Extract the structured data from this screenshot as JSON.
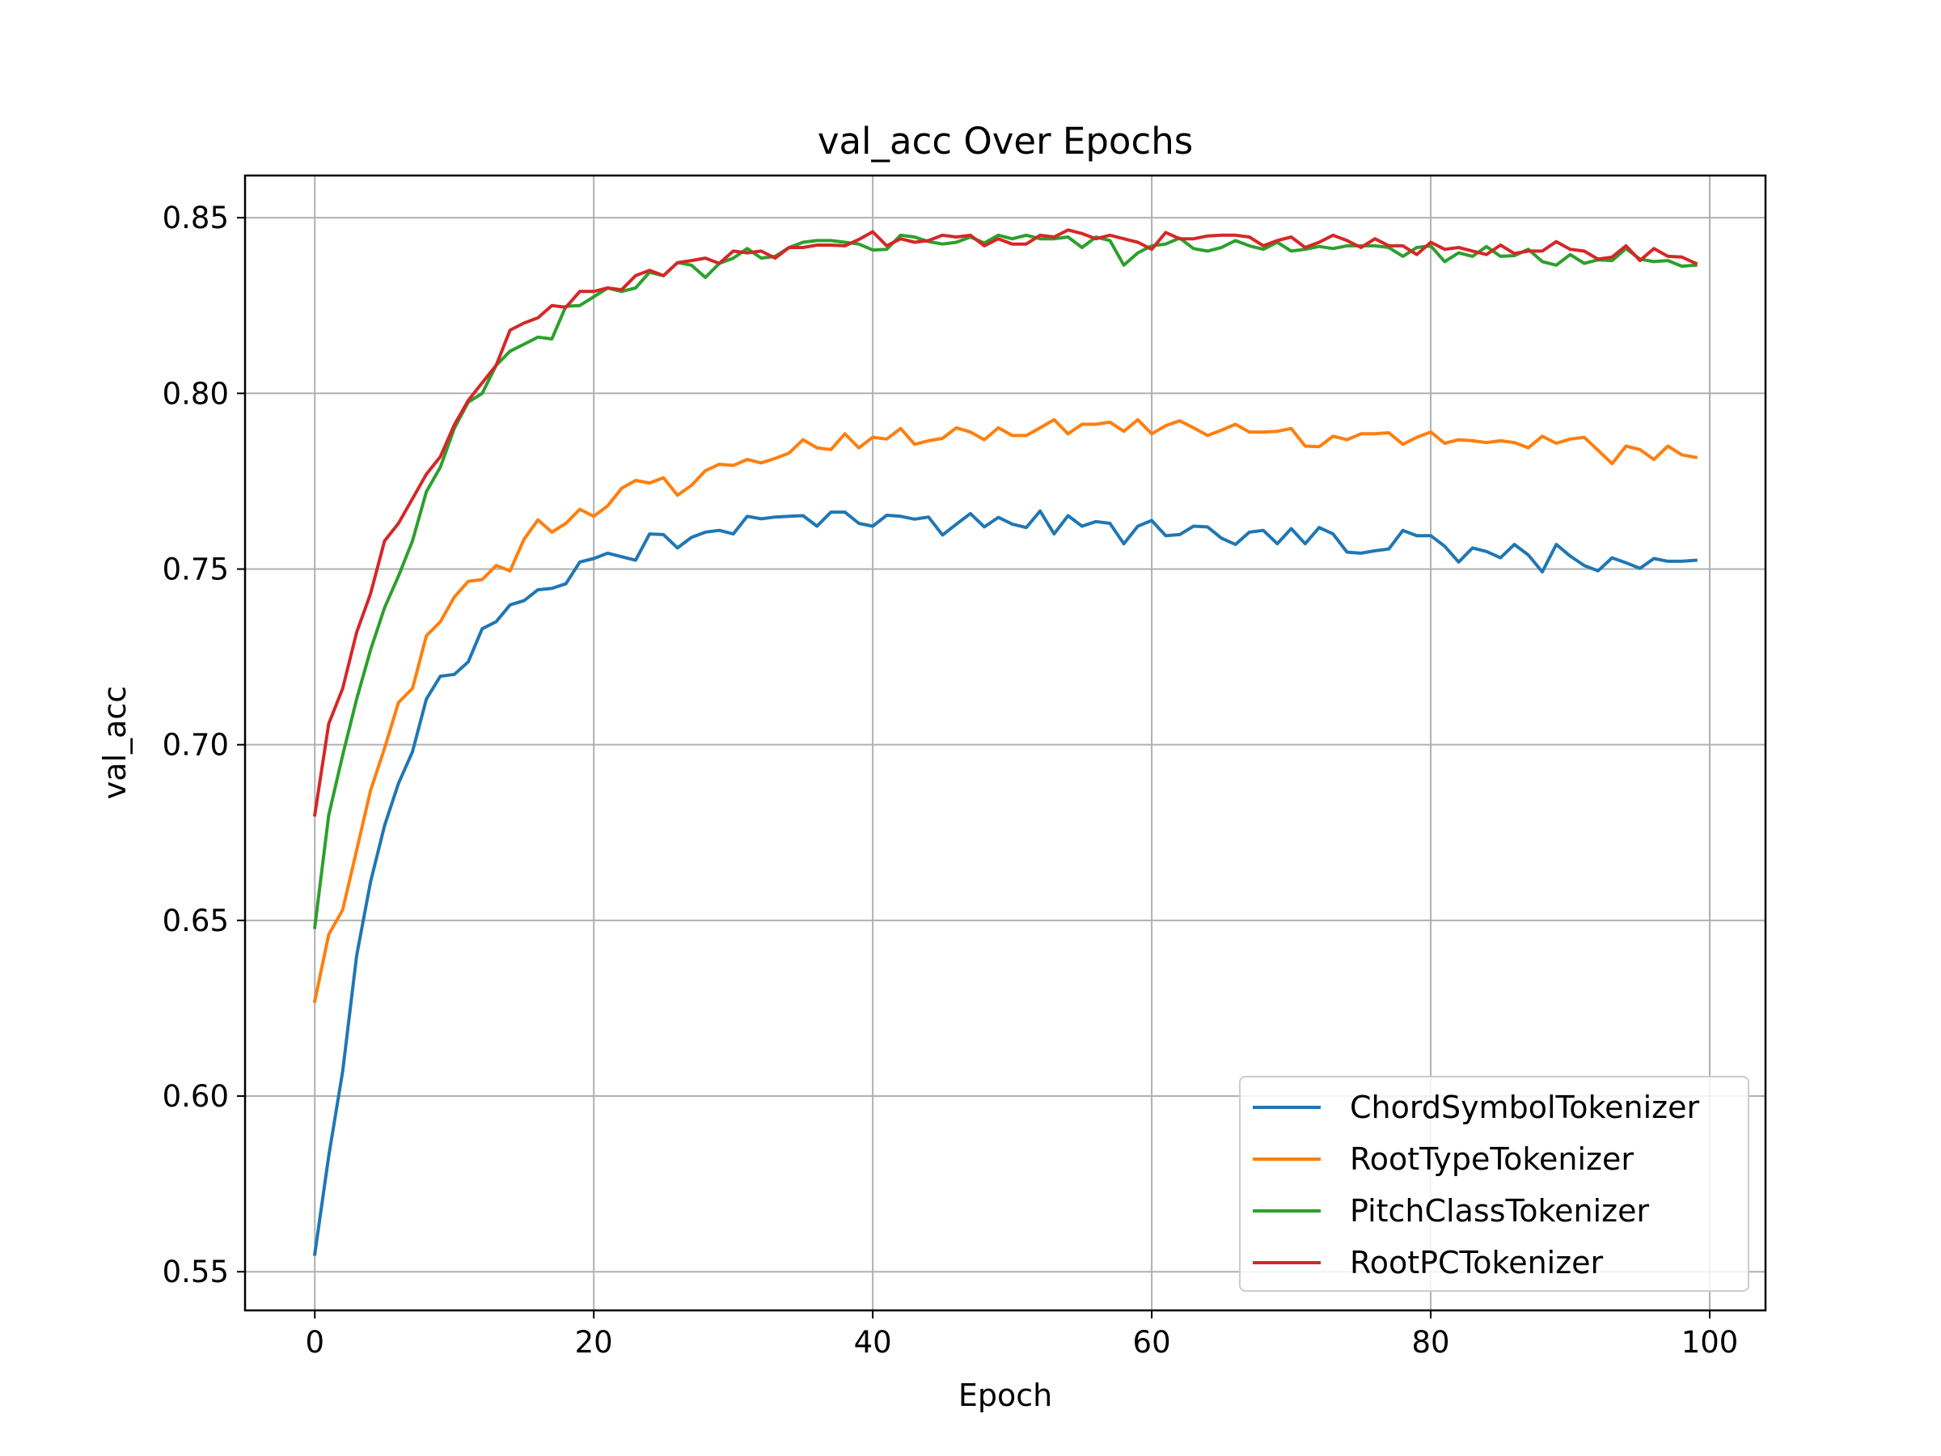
{
  "chart_data": {
    "type": "line",
    "title": "val_acc Over Epochs",
    "xlabel": "Epoch",
    "ylabel": "val_acc",
    "xlim": [
      -5,
      104
    ],
    "ylim": [
      0.539,
      0.862
    ],
    "xticks": [
      0,
      20,
      40,
      60,
      80,
      100
    ],
    "yticks": [
      0.55,
      0.6,
      0.65,
      0.7,
      0.75,
      0.8,
      0.85
    ],
    "ytick_labels": [
      "0.55",
      "0.60",
      "0.65",
      "0.70",
      "0.75",
      "0.80",
      "0.85"
    ],
    "grid": true,
    "legend_position": "lower-right",
    "x": [
      0,
      1,
      2,
      3,
      4,
      5,
      6,
      7,
      8,
      9,
      10,
      11,
      12,
      13,
      14,
      15,
      16,
      17,
      18,
      19,
      20,
      21,
      22,
      23,
      24,
      25,
      26,
      27,
      28,
      29,
      30,
      31,
      32,
      33,
      34,
      35,
      36,
      37,
      38,
      39,
      40,
      41,
      42,
      43,
      44,
      45,
      46,
      47,
      48,
      49,
      50,
      51,
      52,
      53,
      54,
      55,
      56,
      57,
      58,
      59,
      60,
      61,
      62,
      63,
      64,
      65,
      66,
      67,
      68,
      69,
      70,
      71,
      72,
      73,
      74,
      75,
      76,
      77,
      78,
      79,
      80,
      81,
      82,
      83,
      84,
      85,
      86,
      87,
      88,
      89,
      90,
      91,
      92,
      93,
      94,
      95,
      96,
      97,
      98,
      99
    ],
    "series": [
      {
        "name": "ChordSymbolTokenizer",
        "color": "#1f77b4",
        "values": [
          0.555,
          0.583,
          0.607,
          0.64,
          0.661,
          0.677,
          0.689,
          0.698,
          0.713,
          0.7195,
          0.72,
          0.7236,
          0.733,
          0.735,
          0.7398,
          0.741,
          0.7441,
          0.7445,
          0.7458,
          0.752,
          0.753,
          0.7545,
          0.7535,
          0.7525,
          0.76,
          0.7598,
          0.756,
          0.759,
          0.7605,
          0.761,
          0.76,
          0.765,
          0.7643,
          0.7648,
          0.765,
          0.7652,
          0.7622,
          0.7662,
          0.7662,
          0.763,
          0.7622,
          0.7653,
          0.765,
          0.7642,
          0.7648,
          0.7597,
          0.7628,
          0.7658,
          0.762,
          0.7647,
          0.7628,
          0.7618,
          0.7665,
          0.76,
          0.7652,
          0.7622,
          0.7635,
          0.763,
          0.7572,
          0.7622,
          0.7638,
          0.7595,
          0.7598,
          0.7622,
          0.762,
          0.7588,
          0.757,
          0.7605,
          0.761,
          0.7572,
          0.7615,
          0.7572,
          0.7618,
          0.76,
          0.7548,
          0.7545,
          0.7552,
          0.7557,
          0.761,
          0.7595,
          0.7595,
          0.7565,
          0.752,
          0.756,
          0.755,
          0.7532,
          0.757,
          0.754,
          0.7492,
          0.757,
          0.7537,
          0.751,
          0.7495,
          0.7532,
          0.7518,
          0.7502,
          0.753,
          0.7522,
          0.7522,
          0.7525
        ]
      },
      {
        "name": "RootTypeTokenizer",
        "color": "#ff7f0e",
        "values": [
          0.627,
          0.646,
          0.653,
          0.67,
          0.687,
          0.699,
          0.712,
          0.716,
          0.731,
          0.735,
          0.742,
          0.7465,
          0.747,
          0.751,
          0.7495,
          0.7585,
          0.764,
          0.7605,
          0.763,
          0.767,
          0.765,
          0.768,
          0.773,
          0.7752,
          0.7745,
          0.776,
          0.771,
          0.7738,
          0.778,
          0.7798,
          0.7795,
          0.7812,
          0.7802,
          0.7815,
          0.783,
          0.7868,
          0.7845,
          0.784,
          0.7885,
          0.7845,
          0.7875,
          0.787,
          0.79,
          0.7855,
          0.7865,
          0.7872,
          0.7902,
          0.789,
          0.7868,
          0.7902,
          0.788,
          0.788,
          0.7902,
          0.7925,
          0.7885,
          0.7912,
          0.7912,
          0.7918,
          0.7892,
          0.7925,
          0.7885,
          0.7908,
          0.7922,
          0.7902,
          0.788,
          0.7895,
          0.7912,
          0.789,
          0.789,
          0.7892,
          0.79,
          0.785,
          0.7848,
          0.7878,
          0.7868,
          0.7885,
          0.7885,
          0.7888,
          0.7855,
          0.7875,
          0.789,
          0.7858,
          0.7868,
          0.7865,
          0.786,
          0.7865,
          0.786,
          0.7845,
          0.7878,
          0.7858,
          0.787,
          0.7875,
          0.7838,
          0.78,
          0.785,
          0.784,
          0.7812,
          0.785,
          0.7825,
          0.7818
        ]
      },
      {
        "name": "PitchClassTokenizer",
        "color": "#2ca02c",
        "values": [
          0.648,
          0.68,
          0.697,
          0.713,
          0.727,
          0.739,
          0.748,
          0.758,
          0.772,
          0.779,
          0.79,
          0.7975,
          0.8,
          0.808,
          0.812,
          0.814,
          0.816,
          0.8155,
          0.8248,
          0.825,
          0.8275,
          0.83,
          0.829,
          0.83,
          0.8345,
          0.8335,
          0.8372,
          0.8365,
          0.833,
          0.837,
          0.8385,
          0.8412,
          0.8385,
          0.839,
          0.8415,
          0.843,
          0.8435,
          0.8435,
          0.843,
          0.8425,
          0.8408,
          0.841,
          0.845,
          0.8445,
          0.8432,
          0.8425,
          0.843,
          0.8445,
          0.8428,
          0.845,
          0.844,
          0.845,
          0.844,
          0.844,
          0.8445,
          0.8415,
          0.8445,
          0.8435,
          0.8365,
          0.84,
          0.842,
          0.8425,
          0.8442,
          0.8412,
          0.8405,
          0.8415,
          0.8435,
          0.842,
          0.841,
          0.843,
          0.8405,
          0.841,
          0.8418,
          0.8412,
          0.842,
          0.842,
          0.842,
          0.8415,
          0.839,
          0.8415,
          0.842,
          0.8375,
          0.84,
          0.839,
          0.8418,
          0.839,
          0.8392,
          0.841,
          0.8375,
          0.8365,
          0.8395,
          0.837,
          0.838,
          0.8378,
          0.8412,
          0.8382,
          0.8375,
          0.8378,
          0.8362,
          0.8365
        ]
      },
      {
        "name": "RootPCTokenizer",
        "color": "#d62728",
        "values": [
          0.68,
          0.706,
          0.716,
          0.732,
          0.743,
          0.758,
          0.763,
          0.77,
          0.777,
          0.782,
          0.791,
          0.798,
          0.803,
          0.808,
          0.818,
          0.82,
          0.8215,
          0.825,
          0.8245,
          0.829,
          0.829,
          0.83,
          0.8295,
          0.8335,
          0.835,
          0.8335,
          0.8372,
          0.8378,
          0.8385,
          0.837,
          0.8405,
          0.84,
          0.8405,
          0.8385,
          0.8415,
          0.8415,
          0.8422,
          0.8422,
          0.842,
          0.8438,
          0.846,
          0.842,
          0.844,
          0.843,
          0.8435,
          0.845,
          0.8445,
          0.845,
          0.842,
          0.844,
          0.8425,
          0.8425,
          0.845,
          0.8445,
          0.8465,
          0.8455,
          0.844,
          0.845,
          0.844,
          0.843,
          0.841,
          0.8458,
          0.844,
          0.844,
          0.8448,
          0.845,
          0.845,
          0.8445,
          0.842,
          0.8435,
          0.8445,
          0.8415,
          0.843,
          0.845,
          0.8435,
          0.8415,
          0.844,
          0.842,
          0.842,
          0.8395,
          0.843,
          0.841,
          0.8415,
          0.8405,
          0.8395,
          0.8422,
          0.8398,
          0.8405,
          0.8405,
          0.8432,
          0.841,
          0.8405,
          0.8382,
          0.8388,
          0.842,
          0.8378,
          0.8412,
          0.839,
          0.8388,
          0.837
        ]
      }
    ]
  }
}
